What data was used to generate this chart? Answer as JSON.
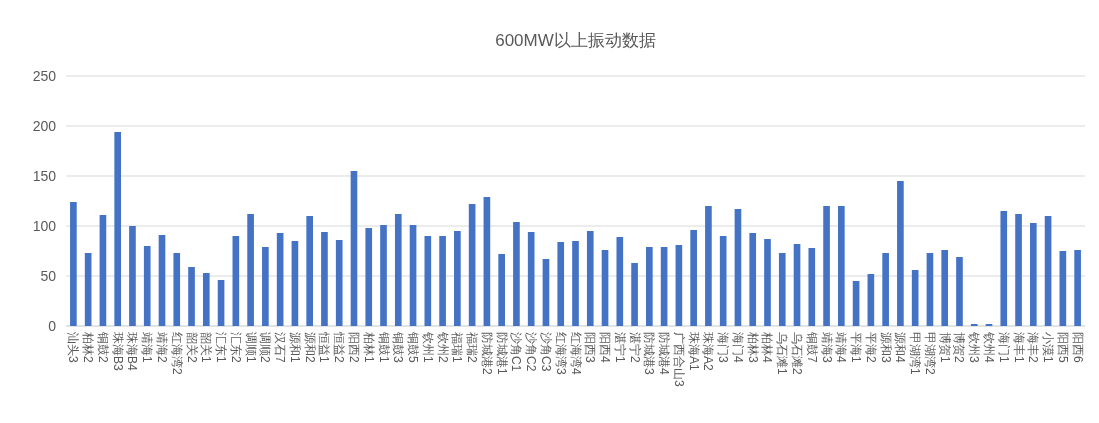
{
  "chart_data": {
    "type": "bar",
    "title": "600MW以上振动数据",
    "categories": [
      "汕头3",
      "柏林2",
      "铜鼓2",
      "珠海B3",
      "珠海B4",
      "靖海1",
      "靖海2",
      "红海湾2",
      "韶关2",
      "韶关1",
      "汇东1",
      "汇东2",
      "调顺1",
      "调顺2",
      "汉石7",
      "源和1",
      "源和2",
      "恒益1",
      "恒益2",
      "阳西2",
      "柏林1",
      "铜鼓1",
      "铜鼓3",
      "铜鼓5",
      "钦州1",
      "钦州2",
      "福瑞1",
      "福瑞2",
      "防城港2",
      "防城港1",
      "沙角C1",
      "沙角C2",
      "沙角C3",
      "红海湾3",
      "红海湾4",
      "阳西3",
      "阳西4",
      "湛宁1",
      "湛宁2",
      "防城港3",
      "防城港4",
      "广西合山3",
      "珠海A1",
      "珠海A2",
      "海门3",
      "海门4",
      "柏林3",
      "柏林4",
      "乌石滩1",
      "乌石滩2",
      "铜鼓7",
      "靖海3",
      "靖海4",
      "平海1",
      "平海2",
      "源和3",
      "源和4",
      "甲湖湾1",
      "甲湖湾2",
      "博贺1",
      "博贺2",
      "钦州3",
      "钦州4",
      "海门1",
      "海丰1",
      "海丰2",
      "小漠1",
      "阳西5",
      "阳西6"
    ],
    "values": [
      124,
      73,
      111,
      194,
      100,
      80,
      91,
      73,
      59,
      53,
      46,
      90,
      112,
      79,
      93,
      85,
      110,
      94,
      86,
      155,
      98,
      101,
      112,
      101,
      90,
      90,
      95,
      122,
      129,
      72,
      104,
      94,
      67,
      84,
      85,
      95,
      76,
      89,
      63,
      79,
      79,
      81,
      96,
      120,
      90,
      117,
      93,
      87,
      73,
      82,
      78,
      120,
      120,
      45,
      52,
      73,
      145,
      56,
      73,
      76,
      69,
      2,
      2,
      115,
      112,
      103,
      110,
      75,
      76
    ],
    "color": "#4472c4",
    "ylim": [
      0,
      250
    ],
    "yticks": [
      0,
      50,
      100,
      150,
      200,
      250
    ],
    "grid": "y",
    "legend": false
  }
}
